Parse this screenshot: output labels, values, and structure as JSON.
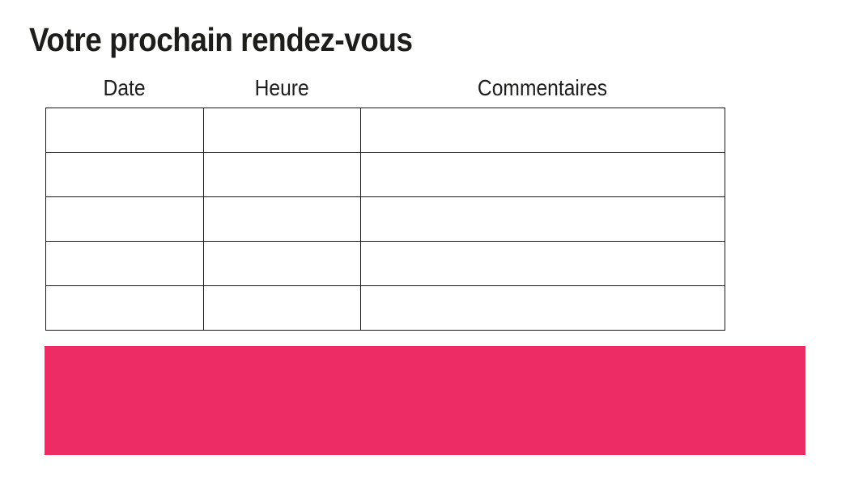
{
  "page": {
    "title": "Votre prochain rendez-vous"
  },
  "appointment_table": {
    "column_headers": [
      "Date",
      "Heure",
      "Commentaires"
    ],
    "row_count": 5,
    "rows": [
      [
        "",
        "",
        ""
      ],
      [
        "",
        "",
        ""
      ],
      [
        "",
        "",
        ""
      ],
      [
        "",
        "",
        ""
      ],
      [
        "",
        "",
        ""
      ]
    ]
  },
  "colors": {
    "accent_pink": "#ED2C64",
    "text_black": "#1D1D1B",
    "table_border": "#1A1A1A",
    "background": "#FFFFFF"
  }
}
